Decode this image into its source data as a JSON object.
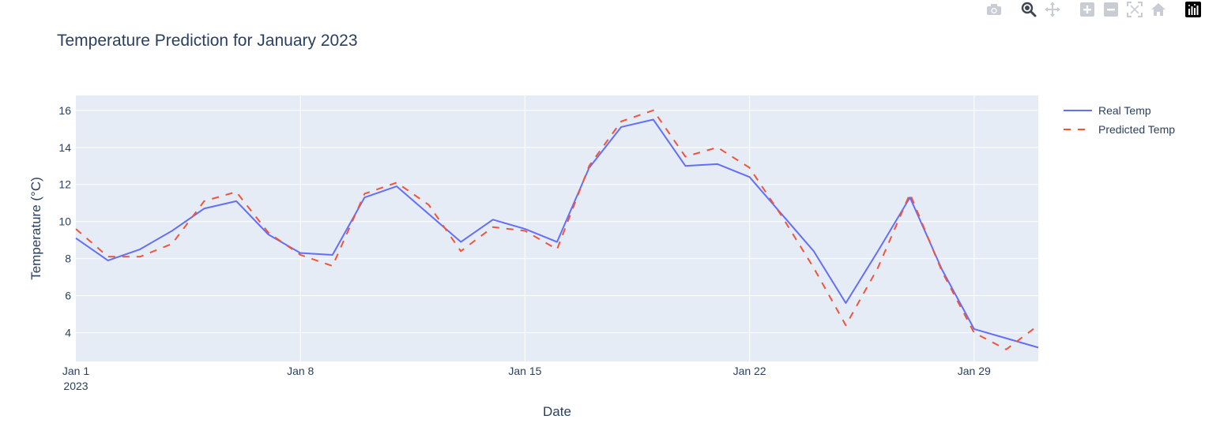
{
  "colors": {
    "background": "#ffffff",
    "plot_background": "#e5ecf6",
    "grid": "#ffffff",
    "text": "#2a3f5f",
    "real_temp": "#636efa",
    "predicted_temp": "#ef553b",
    "modebar_icon": "#c8cdd4",
    "modebar_logo_bg": "#000000",
    "modebar_logo_fg": "#ffffff"
  },
  "modebar": {
    "icons": [
      "camera-icon",
      "zoom-icon",
      "pan-icon",
      "zoom-in-icon",
      "zoom-out-icon",
      "autoscale-icon",
      "home-icon",
      "plotly-logo-icon"
    ]
  },
  "chart_data": {
    "type": "line",
    "title": "Temperature Prediction for January 2023",
    "xlabel": "Date",
    "ylabel": "Temperature (°C)",
    "x": [
      "2023-01-01",
      "2023-01-02",
      "2023-01-03",
      "2023-01-04",
      "2023-01-05",
      "2023-01-06",
      "2023-01-07",
      "2023-01-08",
      "2023-01-09",
      "2023-01-10",
      "2023-01-11",
      "2023-01-12",
      "2023-01-13",
      "2023-01-14",
      "2023-01-15",
      "2023-01-16",
      "2023-01-17",
      "2023-01-18",
      "2023-01-19",
      "2023-01-20",
      "2023-01-21",
      "2023-01-22",
      "2023-01-23",
      "2023-01-24",
      "2023-01-25",
      "2023-01-26",
      "2023-01-27",
      "2023-01-28",
      "2023-01-29",
      "2023-01-30",
      "2023-01-31"
    ],
    "series": [
      {
        "name": "Real Temp",
        "style": "solid",
        "values": [
          9.1,
          7.9,
          8.5,
          9.5,
          10.7,
          11.1,
          9.3,
          8.3,
          8.2,
          11.3,
          11.9,
          10.4,
          8.9,
          10.1,
          9.6,
          8.9,
          12.9,
          15.1,
          15.5,
          13.0,
          13.1,
          12.4,
          10.4,
          8.4,
          5.6,
          8.4,
          11.3,
          7.4,
          4.2,
          3.7,
          3.2
        ]
      },
      {
        "name": "Predicted Temp",
        "style": "dash",
        "values": [
          9.6,
          8.1,
          8.1,
          8.8,
          11.1,
          11.6,
          9.4,
          8.2,
          7.6,
          11.5,
          12.1,
          10.9,
          8.4,
          9.7,
          9.5,
          8.5,
          13.0,
          15.4,
          16.0,
          13.5,
          14.0,
          12.9,
          10.3,
          7.5,
          4.4,
          7.5,
          11.5,
          7.3,
          4.0,
          3.1,
          4.4
        ]
      }
    ],
    "x_ticks": [
      {
        "date": "2023-01-01",
        "label": "Jan 1",
        "sublabel": "2023"
      },
      {
        "date": "2023-01-08",
        "label": "Jan 8",
        "sublabel": ""
      },
      {
        "date": "2023-01-15",
        "label": "Jan 15",
        "sublabel": ""
      },
      {
        "date": "2023-01-22",
        "label": "Jan 22",
        "sublabel": ""
      },
      {
        "date": "2023-01-29",
        "label": "Jan 29",
        "sublabel": ""
      }
    ],
    "y_ticks": [
      4,
      6,
      8,
      10,
      12,
      14,
      16
    ],
    "ylim": [
      2.45,
      16.8
    ],
    "xlim": [
      "2023-01-01",
      "2023-01-31"
    ],
    "grid": true,
    "legend_position": "top-right"
  }
}
